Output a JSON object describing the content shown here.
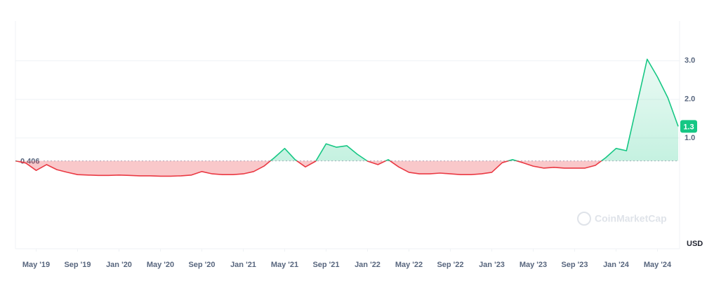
{
  "chart_data": {
    "type": "line",
    "x": [
      "2019-03",
      "2019-04",
      "2019-05",
      "2019-06",
      "2019-07",
      "2019-08",
      "2019-09",
      "2019-10",
      "2019-11",
      "2019-12",
      "2020-01",
      "2020-02",
      "2020-03",
      "2020-04",
      "2020-05",
      "2020-06",
      "2020-07",
      "2020-08",
      "2020-09",
      "2020-10",
      "2020-11",
      "2020-12",
      "2021-01",
      "2021-02",
      "2021-03",
      "2021-04",
      "2021-05",
      "2021-06",
      "2021-07",
      "2021-08",
      "2021-09",
      "2021-10",
      "2021-11",
      "2021-12",
      "2022-01",
      "2022-02",
      "2022-03",
      "2022-04",
      "2022-05",
      "2022-06",
      "2022-07",
      "2022-08",
      "2022-09",
      "2022-10",
      "2022-11",
      "2022-12",
      "2023-01",
      "2023-02",
      "2023-03",
      "2023-04",
      "2023-05",
      "2023-06",
      "2023-07",
      "2023-08",
      "2023-09",
      "2023-10",
      "2023-11",
      "2023-12",
      "2024-01",
      "2024-02",
      "2024-03",
      "2024-04",
      "2024-05",
      "2024-06",
      "2024-07"
    ],
    "series": [
      {
        "name": "Price",
        "values": [
          0.406,
          0.35,
          0.16,
          0.31,
          0.18,
          0.11,
          0.05,
          0.04,
          0.03,
          0.03,
          0.04,
          0.03,
          0.02,
          0.02,
          0.01,
          0.01,
          0.02,
          0.04,
          0.13,
          0.07,
          0.05,
          0.05,
          0.07,
          0.13,
          0.27,
          0.49,
          0.73,
          0.44,
          0.25,
          0.4,
          0.85,
          0.76,
          0.8,
          0.58,
          0.4,
          0.31,
          0.44,
          0.25,
          0.11,
          0.07,
          0.07,
          0.09,
          0.07,
          0.05,
          0.05,
          0.07,
          0.11,
          0.36,
          0.44,
          0.36,
          0.27,
          0.22,
          0.24,
          0.22,
          0.22,
          0.22,
          0.29,
          0.49,
          0.73,
          0.67,
          1.85,
          3.04,
          2.58,
          2.04,
          1.3
        ],
        "value_labels": {
          "64": "1.3"
        }
      }
    ],
    "baseline": 0.406,
    "baseline_label": "0.406",
    "up_color": "#16c784",
    "down_color": "#ea3943",
    "ylim": [
      -1.87,
      4.03
    ],
    "yticks": [
      {
        "value": 1,
        "label": "1.0"
      },
      {
        "value": 2,
        "label": "2.0"
      },
      {
        "value": 3,
        "label": "3.0"
      }
    ],
    "xlim": [
      "2019-03",
      "2024-07"
    ],
    "xticks": [
      {
        "value": "2019-05",
        "label": "May '19"
      },
      {
        "value": "2019-09",
        "label": "Sep '19"
      },
      {
        "value": "2020-01",
        "label": "Jan '20"
      },
      {
        "value": "2020-05",
        "label": "May '20"
      },
      {
        "value": "2020-09",
        "label": "Sep '20"
      },
      {
        "value": "2021-01",
        "label": "Jan '21"
      },
      {
        "value": "2021-05",
        "label": "May '21"
      },
      {
        "value": "2021-09",
        "label": "Sep '21"
      },
      {
        "value": "2022-01",
        "label": "Jan '22"
      },
      {
        "value": "2022-05",
        "label": "May '22"
      },
      {
        "value": "2022-09",
        "label": "Sep '22"
      },
      {
        "value": "2023-01",
        "label": "Jan '23"
      },
      {
        "value": "2023-05",
        "label": "May '23"
      },
      {
        "value": "2023-09",
        "label": "Sep '23"
      },
      {
        "value": "2024-01",
        "label": "Jan '24"
      },
      {
        "value": "2024-05",
        "label": "May '24"
      }
    ],
    "grid": true,
    "currency": "USD",
    "watermark": "CoinMarketCap"
  }
}
